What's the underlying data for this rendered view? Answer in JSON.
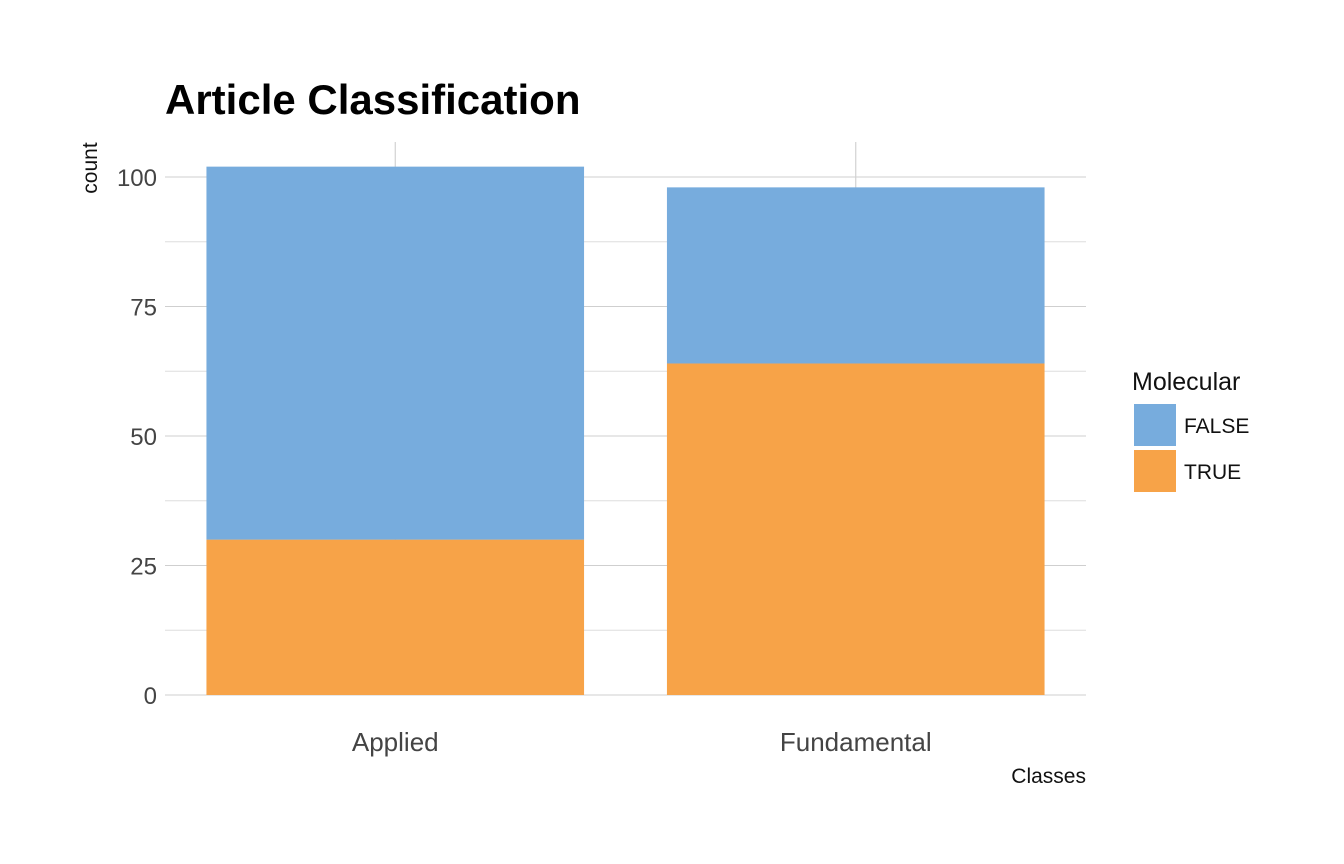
{
  "chart_data": {
    "type": "bar",
    "stacked": true,
    "title": "Article Classification",
    "xlabel": "Classes",
    "ylabel": "count",
    "categories": [
      "Applied",
      "Fundamental"
    ],
    "series": [
      {
        "name": "FALSE",
        "values": [
          72,
          34
        ],
        "color": "#77acdd"
      },
      {
        "name": "TRUE",
        "values": [
          30,
          64
        ],
        "color": "#f7a348"
      }
    ],
    "ylim": [
      0,
      107
    ],
    "yticks": [
      0,
      25,
      50,
      75,
      100
    ],
    "grid": true,
    "legend": {
      "title": "Molecular",
      "placement": "right"
    }
  }
}
